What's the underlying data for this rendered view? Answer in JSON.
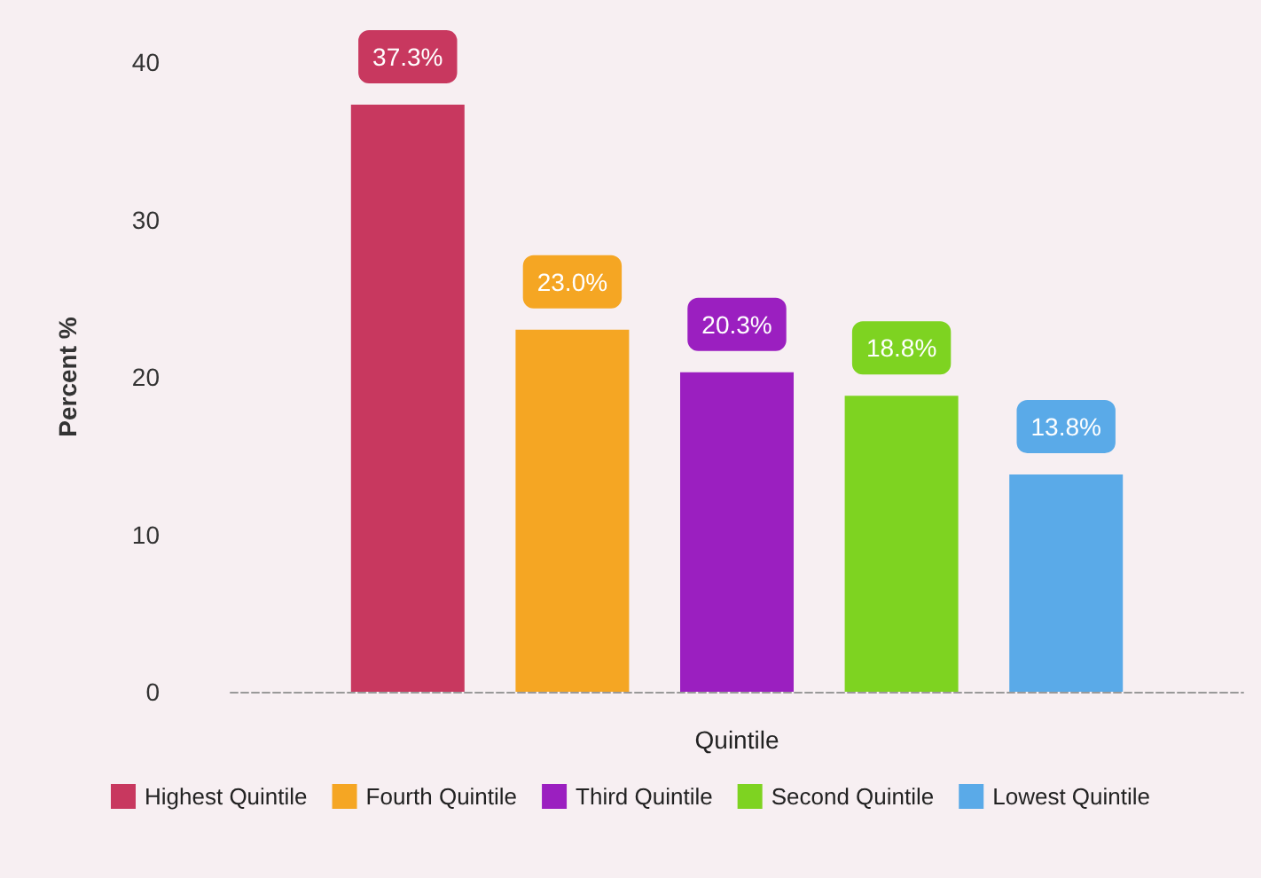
{
  "chart_data": {
    "type": "bar",
    "xlabel": "Quintile",
    "ylabel": "Percent %",
    "categories": [
      null
    ],
    "series": [
      {
        "name": "Highest Quintile",
        "color": "#c8385f",
        "values": [
          37.3
        ],
        "value_labels": [
          "37.3%"
        ]
      },
      {
        "name": "Fourth Quintile",
        "color": "#f5a623",
        "values": [
          23.0
        ],
        "value_labels": [
          "23.0%"
        ]
      },
      {
        "name": "Third Quintile",
        "color": "#9b1fc0",
        "values": [
          20.3
        ],
        "value_labels": [
          "20.3%"
        ]
      },
      {
        "name": "Second Quintile",
        "color": "#7ed321",
        "values": [
          18.8
        ],
        "value_labels": [
          "18.8%"
        ]
      },
      {
        "name": "Lowest Quintile",
        "color": "#5aaae8",
        "values": [
          13.8
        ],
        "value_labels": [
          "13.8%"
        ]
      }
    ],
    "ylim": [
      0,
      40
    ],
    "yticks": [
      0,
      10,
      20,
      30,
      40
    ],
    "grid": false,
    "legend": "bottom"
  }
}
